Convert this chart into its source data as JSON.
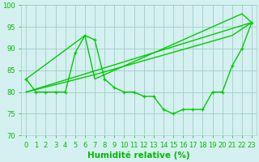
{
  "series": [
    {
      "x": [
        0,
        1,
        2,
        3,
        4,
        5,
        6,
        7,
        8,
        9,
        10,
        11,
        12,
        13,
        14,
        15,
        16,
        17,
        18,
        19,
        20,
        21,
        22,
        23
      ],
      "y": [
        83,
        80,
        80,
        80,
        80,
        89,
        93,
        92,
        83,
        81,
        80,
        80,
        79,
        79,
        76,
        75,
        76,
        76,
        76,
        80,
        80,
        86,
        90,
        96
      ],
      "color": "#00cc00",
      "linewidth": 1.0,
      "marker": "+"
    },
    {
      "x": [
        0,
        6,
        7,
        22,
        23
      ],
      "y": [
        83,
        93,
        83,
        98,
        96
      ],
      "color": "#00cc00",
      "linewidth": 1.0,
      "marker": null
    },
    {
      "x": [
        0,
        7,
        21,
        23
      ],
      "y": [
        80,
        84,
        93,
        96
      ],
      "color": "#00cc00",
      "linewidth": 1.0,
      "marker": null
    },
    {
      "x": [
        0,
        23
      ],
      "y": [
        80,
        96
      ],
      "color": "#00cc00",
      "linewidth": 1.0,
      "marker": null
    }
  ],
  "xlim": [
    -0.5,
    23.5
  ],
  "ylim": [
    70,
    100
  ],
  "yticks": [
    70,
    75,
    80,
    85,
    90,
    95,
    100
  ],
  "xticks": [
    0,
    1,
    2,
    3,
    4,
    5,
    6,
    7,
    8,
    9,
    10,
    11,
    12,
    13,
    14,
    15,
    16,
    17,
    18,
    19,
    20,
    21,
    22,
    23
  ],
  "xlabel": "Humidité relative (%)",
  "xlabel_fontsize": 7.5,
  "tick_fontsize": 6,
  "bg_color": "#d5f0f0",
  "grid_color": "#a0cccc",
  "line_color": "#00bb00"
}
